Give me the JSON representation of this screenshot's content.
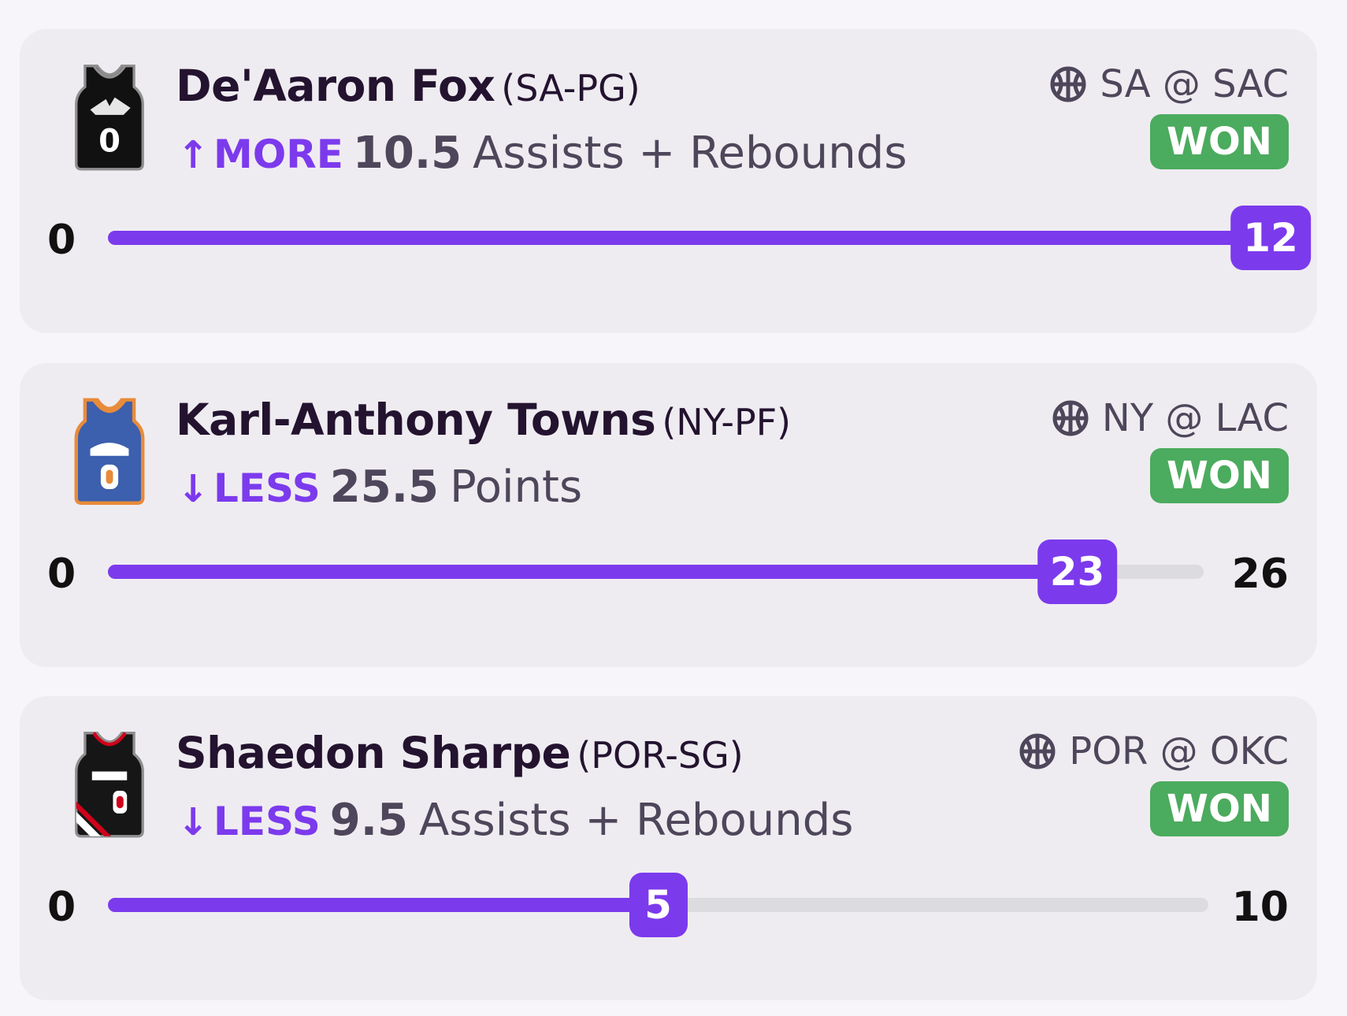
{
  "colors": {
    "background": "#f7f5f9",
    "card": "#efecf1",
    "accent": "#7c3aed",
    "won_badge": "#4bab5e",
    "track": "#dcdbdf",
    "name_text": "#23132f",
    "muted_text": "#4e465a"
  },
  "picks": [
    {
      "player": "De'Aaron Fox",
      "team_pos": "(SA-PG)",
      "jersey_icon": "spurs-jersey-icon",
      "direction_arrow": "↑",
      "direction": "MORE",
      "line": "10.5",
      "stat": "Assists + Rebounds",
      "sport_icon": "basketball-icon",
      "matchup": "SA @ SAC",
      "result": "WON",
      "progress": {
        "min": "0",
        "max": "",
        "current": 12,
        "current_label": "12",
        "scale_max": 12
      }
    },
    {
      "player": "Karl-Anthony Towns",
      "team_pos": "(NY-PF)",
      "jersey_icon": "knicks-jersey-icon",
      "direction_arrow": "↓",
      "direction": "LESS",
      "line": "25.5",
      "stat": "Points",
      "sport_icon": "basketball-icon",
      "matchup": "NY @ LAC",
      "result": "WON",
      "progress": {
        "min": "0",
        "max": "26",
        "current": 23,
        "current_label": "23",
        "scale_max": 26
      }
    },
    {
      "player": "Shaedon Sharpe",
      "team_pos": "(POR-SG)",
      "jersey_icon": "blazers-jersey-icon",
      "direction_arrow": "↓",
      "direction": "LESS",
      "line": "9.5",
      "stat": "Assists + Rebounds",
      "sport_icon": "basketball-icon",
      "matchup": "POR @ OKC",
      "result": "WON",
      "progress": {
        "min": "0",
        "max": "10",
        "current": 5,
        "current_label": "5",
        "scale_max": 10
      }
    }
  ]
}
